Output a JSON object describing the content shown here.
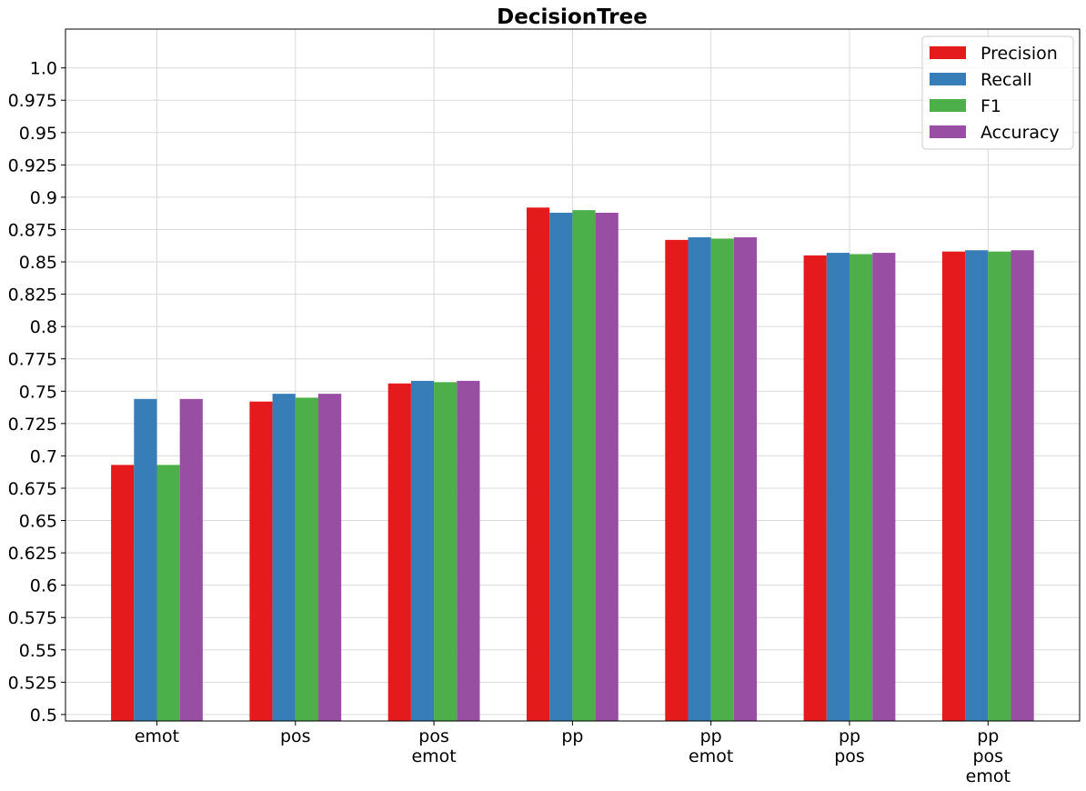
{
  "chart_data": {
    "type": "bar",
    "title": "DecisionTree",
    "xlabel": "",
    "ylabel": "",
    "ylim": [
      0.495,
      1.03
    ],
    "grid": true,
    "legend_position": "top-right",
    "yticks": [
      "0.5",
      "0.525",
      "0.55",
      "0.575",
      "0.6",
      "0.625",
      "0.65",
      "0.675",
      "0.7",
      "0.725",
      "0.75",
      "0.775",
      "0.8",
      "0.825",
      "0.85",
      "0.875",
      "0.9",
      "0.925",
      "0.95",
      "0.975",
      "1.0"
    ],
    "categories": [
      [
        "emot"
      ],
      [
        "pos"
      ],
      [
        "pos",
        "emot"
      ],
      [
        "pp"
      ],
      [
        "pp",
        "emot"
      ],
      [
        "pp",
        "pos"
      ],
      [
        "pp",
        "pos",
        "emot"
      ]
    ],
    "series": [
      {
        "name": "Precision",
        "color": "#e41a1c",
        "values": [
          0.693,
          0.742,
          0.756,
          0.892,
          0.867,
          0.855,
          0.858
        ]
      },
      {
        "name": "Recall",
        "color": "#377eb8",
        "values": [
          0.744,
          0.748,
          0.758,
          0.888,
          0.869,
          0.857,
          0.859
        ]
      },
      {
        "name": "F1",
        "color": "#4daf4a",
        "values": [
          0.693,
          0.745,
          0.757,
          0.89,
          0.868,
          0.856,
          0.858
        ]
      },
      {
        "name": "Accuracy",
        "color": "#984ea3",
        "values": [
          0.744,
          0.748,
          0.758,
          0.888,
          0.869,
          0.857,
          0.859
        ]
      }
    ]
  }
}
